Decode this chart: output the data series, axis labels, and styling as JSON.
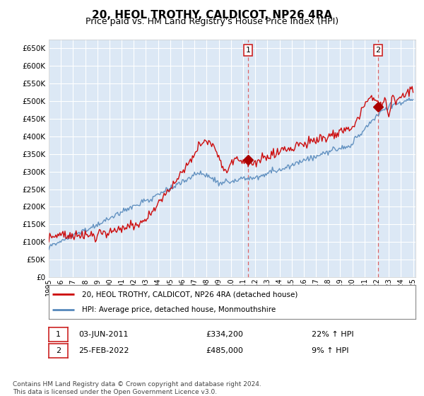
{
  "title": "20, HEOL TROTHY, CALDICOT, NP26 4RA",
  "subtitle": "Price paid vs. HM Land Registry's House Price Index (HPI)",
  "title_fontsize": 11,
  "subtitle_fontsize": 9,
  "ylabel_ticks": [
    "£0",
    "£50K",
    "£100K",
    "£150K",
    "£200K",
    "£250K",
    "£300K",
    "£350K",
    "£400K",
    "£450K",
    "£500K",
    "£550K",
    "£600K",
    "£650K"
  ],
  "ytick_values": [
    0,
    50000,
    100000,
    150000,
    200000,
    250000,
    300000,
    350000,
    400000,
    450000,
    500000,
    550000,
    600000,
    650000
  ],
  "ylim": [
    0,
    675000
  ],
  "xlim_start": 1995.0,
  "xlim_end": 2025.2,
  "background_color": "#ffffff",
  "plot_bg_color": "#dce8f5",
  "grid_color": "#ffffff",
  "sale1_date": 2011.42,
  "sale1_price": 334200,
  "sale2_date": 2022.12,
  "sale2_price": 485000,
  "red_line_color": "#cc0000",
  "blue_line_color": "#5588bb",
  "sale_dot_color": "#aa0000",
  "annotation1_label": "1",
  "annotation2_label": "2",
  "legend_line1": "20, HEOL TROTHY, CALDICOT, NP26 4RA (detached house)",
  "legend_line2": "HPI: Average price, detached house, Monmouthshire",
  "info1_label": "1",
  "info1_date": "03-JUN-2011",
  "info1_price": "£334,200",
  "info1_hpi": "22% ↑ HPI",
  "info2_label": "2",
  "info2_date": "25-FEB-2022",
  "info2_price": "£485,000",
  "info2_hpi": "9% ↑ HPI",
  "footer": "Contains HM Land Registry data © Crown copyright and database right 2024.\nThis data is licensed under the Open Government Licence v3.0.",
  "dashed_line_color": "#dd4444"
}
